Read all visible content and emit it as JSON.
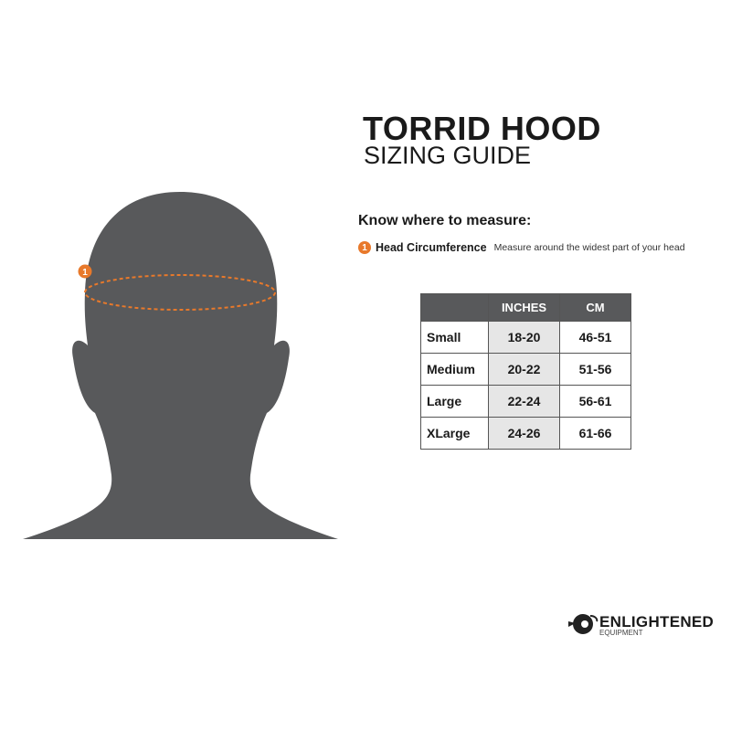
{
  "header": {
    "title": "TORRID HOOD",
    "subtitle": "SIZING GUIDE"
  },
  "measure": {
    "heading": "Know where to measure:",
    "marker": "1",
    "label": "Head Circumference",
    "description": "Measure around the widest part of your head",
    "marker_color": "#e8792b"
  },
  "table": {
    "columns": [
      "",
      "INCHES",
      "CM"
    ],
    "rows": [
      {
        "size": "Small",
        "inches": "18-20",
        "cm": "46-51"
      },
      {
        "size": "Medium",
        "inches": "20-22",
        "cm": "51-56"
      },
      {
        "size": "Large",
        "inches": "22-24",
        "cm": "56-61"
      },
      {
        "size": "XLarge",
        "inches": "24-26",
        "cm": "61-66"
      }
    ]
  },
  "figure": {
    "marker": "1",
    "silhouette_color": "#58595b"
  },
  "logo": {
    "name": "ENLIGHTENED",
    "sub": "EQUIPMENT"
  }
}
